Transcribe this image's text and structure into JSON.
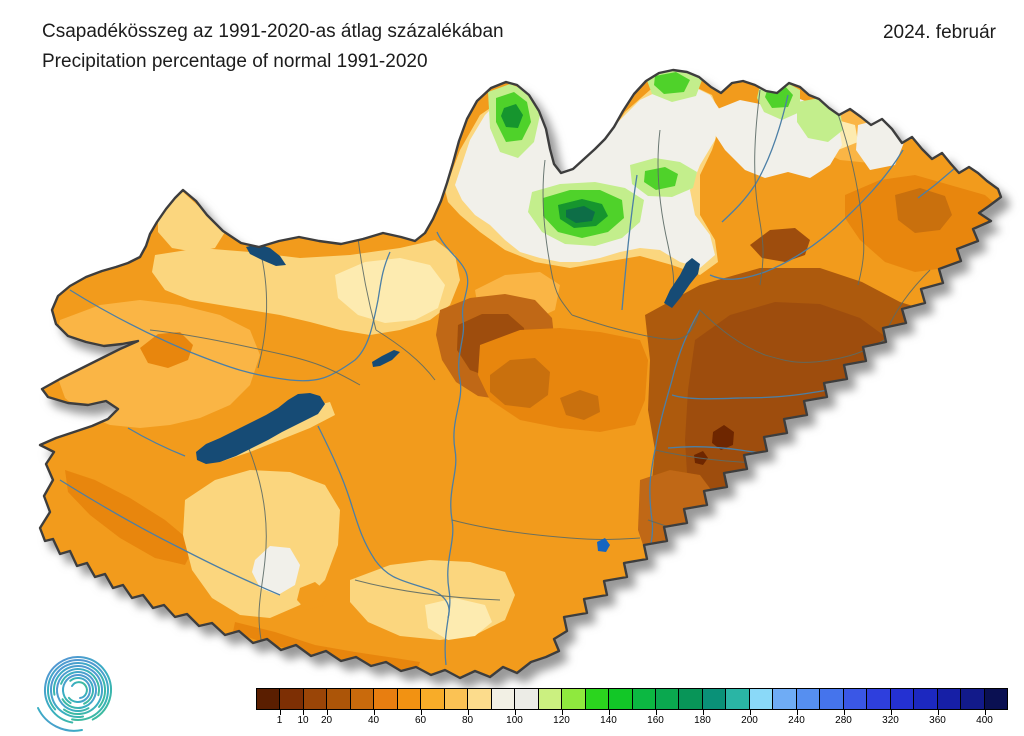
{
  "header": {
    "title_hu": "Csapadékösszeg az 1991-2020-as átlag százalékában",
    "title_en": "Precipitation percentage of normal 1991-2020",
    "date": "2024. február"
  },
  "legend": {
    "cells": [
      "#5A1E00",
      "#7D2F04",
      "#9A4507",
      "#AC5508",
      "#C96A0C",
      "#E87E10",
      "#F29212",
      "#F8AC28",
      "#FBC254",
      "#FCDC8C",
      "#F2F0E4",
      "#ECECE6",
      "#CBF080",
      "#8FE93E",
      "#2BD51E",
      "#12C727",
      "#0CB842",
      "#0AA84F",
      "#089558",
      "#0A9178",
      "#2AB5A5",
      "#8AD9F8",
      "#6FACF5",
      "#568FF0",
      "#4574EC",
      "#3A57E6",
      "#2E3FDD",
      "#2431D2",
      "#1C28C0",
      "#161FA6",
      "#121A8A",
      "#0A1052"
    ],
    "ticks": [
      {
        "label": "1",
        "boundary": 1
      },
      {
        "label": "10",
        "boundary": 2
      },
      {
        "label": "20",
        "boundary": 3
      },
      {
        "label": "40",
        "boundary": 5
      },
      {
        "label": "60",
        "boundary": 7
      },
      {
        "label": "80",
        "boundary": 9
      },
      {
        "label": "100",
        "boundary": 11
      },
      {
        "label": "120",
        "boundary": 13
      },
      {
        "label": "140",
        "boundary": 15
      },
      {
        "label": "160",
        "boundary": 17
      },
      {
        "label": "180",
        "boundary": 19
      },
      {
        "label": "200",
        "boundary": 21
      },
      {
        "label": "240",
        "boundary": 23
      },
      {
        "label": "280",
        "boundary": 25
      },
      {
        "label": "320",
        "boundary": 27
      },
      {
        "label": "360",
        "boundary": 29
      },
      {
        "label": "400",
        "boundary": 31
      }
    ]
  },
  "colors": {
    "background": "#FFFFFF",
    "country_border": "#3E3E3E",
    "county_border": "#5C6B66",
    "river": "#4C7FA6",
    "lake_water": "#174B75",
    "small_lake_blue": "#1565C0",
    "shadow": "#777777",
    "base_orange": "#F29B1C",
    "logo_blue": "#5B8FD8",
    "logo_green": "#3FBF92"
  }
}
